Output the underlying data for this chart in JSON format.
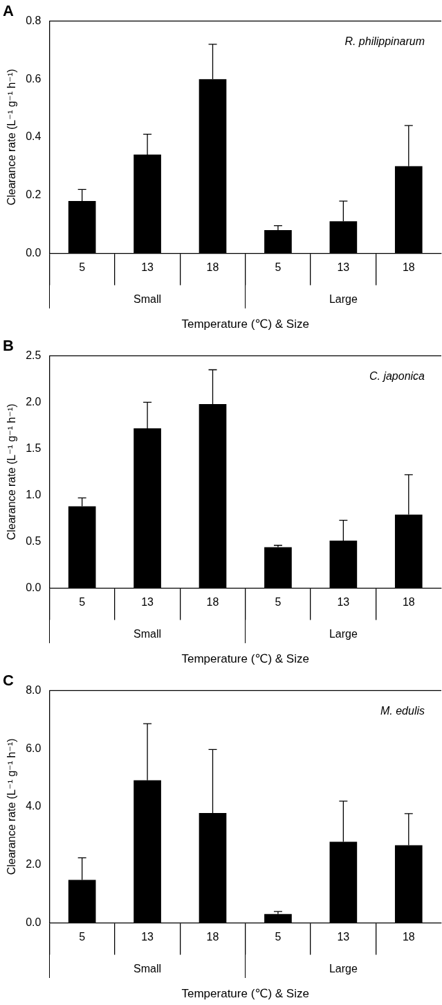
{
  "chart_data": [
    {
      "type": "bar",
      "title": "A",
      "categories": [
        "5",
        "13",
        "18",
        "5",
        "13",
        "18"
      ],
      "values": [
        0.18,
        0.34,
        0.6,
        0.08,
        0.11,
        0.3
      ],
      "errors": [
        [
          0.18,
          0.22
        ],
        [
          0.34,
          0.41
        ],
        [
          0.6,
          0.72
        ],
        [
          0.08,
          0.095
        ],
        [
          0.11,
          0.18
        ],
        [
          0.3,
          0.44
        ]
      ],
      "color": "#000000",
      "ylabel": "Clearance rate (L⁻¹ g⁻¹ h⁻¹)",
      "xlabel": "Temperature (℃) & Size",
      "ylim": [
        0,
        0.8
      ],
      "yticks": [
        {
          "value": 0,
          "label": "0.0"
        },
        0.2,
        0.4,
        0.6,
        0.8
      ],
      "grid": false,
      "legend": false,
      "annotations": [
        "R. philippinarum",
        "Small",
        "Large"
      ]
    },
    {
      "type": "bar",
      "title": "B",
      "categories": [
        "5",
        "13",
        "18",
        "5",
        "13",
        "18"
      ],
      "values": [
        0.88,
        1.72,
        1.98,
        0.44,
        0.51,
        0.79
      ],
      "errors": [
        [
          0.88,
          0.97
        ],
        [
          1.72,
          2.0
        ],
        [
          1.98,
          2.35
        ],
        [
          0.44,
          0.46
        ],
        [
          0.51,
          0.73
        ],
        [
          0.79,
          1.22
        ]
      ],
      "color": "#000000",
      "ylabel": "Clearance rate (L⁻¹ g⁻¹ h⁻¹)",
      "xlabel": "Temperature (℃) & Size",
      "ylim": [
        0,
        2.5
      ],
      "yticks": [
        {
          "value": 0,
          "label": "0.0"
        },
        0.5,
        {
          "value": 1,
          "label": "1.0"
        },
        1.5,
        {
          "value": 2,
          "label": "2.0"
        },
        2.5
      ],
      "grid": false,
      "legend": false,
      "annotations": [
        "C. japonica",
        "Small",
        "Large"
      ]
    },
    {
      "type": "bar",
      "title": "C",
      "categories": [
        "5",
        "13",
        "18",
        "5",
        "13",
        "18"
      ],
      "values": [
        1.48,
        4.91,
        3.78,
        0.3,
        2.79,
        2.67
      ],
      "errors": [
        [
          1.48,
          2.24
        ],
        [
          4.91,
          6.86
        ],
        [
          3.78,
          5.97
        ],
        [
          0.3,
          0.39
        ],
        [
          2.79,
          4.19
        ],
        [
          2.67,
          3.76
        ]
      ],
      "color": "#000000",
      "ylabel": "Clearance rate (L⁻¹ g⁻¹ h⁻¹)",
      "xlabel": "Temperature (℃) & Size",
      "ylim": [
        0,
        8
      ],
      "yticks": [
        {
          "value": 0,
          "label": "0.0"
        },
        {
          "value": 2,
          "label": "2.0"
        },
        {
          "value": 4,
          "label": "4.0"
        },
        {
          "value": 6,
          "label": "6.0"
        },
        {
          "value": 8,
          "label": "8.0"
        }
      ],
      "grid": false,
      "legend": false,
      "annotations": [
        "M. edulis",
        "Small",
        "Large"
      ]
    }
  ]
}
